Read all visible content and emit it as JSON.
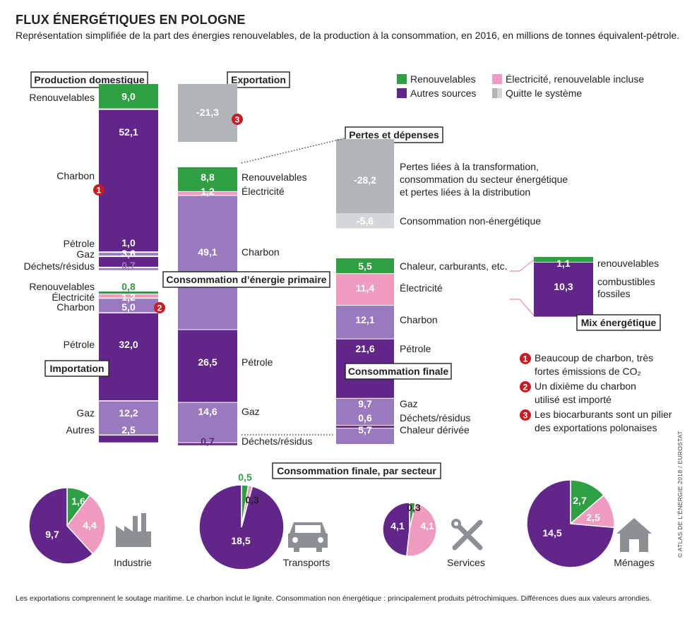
{
  "title": "FLUX ÉNERGÉTIQUES EN POLOGNE",
  "subtitle": "Représentation simplifiée de la part des énergies renouvelables, de la production à la consommation, en 2016, en millions de tonnes équivalent-pétrole.",
  "footnote": "Les exportations comprennent le soutage maritime. Le charbon inclut le lignite. Consommation non énergétique : principalement produits pétrochimiques. Différences dues aux valeurs arrondies.",
  "credit": "© ATLAS DE L'ÉNERGIE 2018 / EUROSTAT",
  "colors": {
    "renouvelables": "#2ea043",
    "autres": "#62268a",
    "autres_light": "#9a7abf",
    "electricite": "#f09bc0",
    "quitte": "#b1b4b8",
    "quitte_light": "#d4d7da",
    "marker": "#cc1a22"
  },
  "legend": [
    {
      "label": "Renouvelables",
      "color": "#2ea043"
    },
    {
      "label": "Électricité, renouvelable incluse",
      "color": "#f09bc0"
    },
    {
      "label": "Autres sources",
      "color": "#62268a"
    },
    {
      "label": "Quitte le système",
      "color": "#b1b4b8"
    }
  ],
  "notes": [
    {
      "num": "1",
      "lines": [
        "Beaucoup de charbon, très",
        "fortes émissions de CO₂"
      ]
    },
    {
      "num": "2",
      "lines": [
        "Un dixième du charbon",
        "utilisé est importé"
      ]
    },
    {
      "num": "3",
      "lines": [
        "Les biocarburants sont un pilier",
        "des exportations polonaises"
      ]
    }
  ],
  "chart_data": [
    {
      "type": "bar",
      "title": "Production domestique",
      "unit": "millions de tonnes équivalent-pétrole",
      "categories": [
        "Renouvelables",
        "Charbon",
        "Pétrole",
        "Gaz",
        "Déchets/résidus"
      ],
      "values": [
        9.0,
        52.1,
        1.0,
        3.6,
        0.7
      ],
      "labels": [
        "9,0",
        "52,1",
        "1,0",
        "3,6",
        "0,7"
      ],
      "marker": "1"
    },
    {
      "type": "bar",
      "title": "Importation",
      "categories": [
        "Renouvelables",
        "Électricité",
        "Charbon",
        "Pétrole",
        "Gaz",
        "Autres"
      ],
      "values": [
        0.8,
        1.2,
        5.0,
        32.0,
        12.2,
        2.5
      ],
      "labels": [
        "0,8",
        "1,2",
        "5,0",
        "32,0",
        "12,2",
        "2,5"
      ],
      "marker": "2"
    },
    {
      "type": "bar",
      "title": "Exportation",
      "categories": [
        "Exportation"
      ],
      "values": [
        -21.3
      ],
      "labels": [
        "-21,3"
      ],
      "marker": "3"
    },
    {
      "type": "bar",
      "title": "Consommation d’énergie primaire",
      "categories": [
        "Renouvelables",
        "Électricité",
        "Charbon",
        "Pétrole",
        "Gaz",
        "Déchets/résidus"
      ],
      "values": [
        8.8,
        1.2,
        49.1,
        26.5,
        14.6,
        0.7
      ],
      "labels": [
        "8,8",
        "1,2",
        "49,1",
        "26,5",
        "14,6",
        "0,7"
      ]
    },
    {
      "type": "bar",
      "title": "Pertes et dépenses",
      "categories": [
        "Pertes liées à la transformation, consommation du secteur énergétique et pertes liées à la distribution",
        "Consommation non-énergétique"
      ],
      "category_lines": [
        [
          "Pertes liées à la transformation,",
          "consommation du secteur énergétique",
          "et pertes liées à la distribution"
        ],
        [
          "Consommation non-énergétique"
        ]
      ],
      "values": [
        -28.2,
        -5.6
      ],
      "labels": [
        "-28,2",
        "-5,6"
      ]
    },
    {
      "type": "bar",
      "title": "Consommation finale",
      "categories": [
        "Chaleur, carburants, etc.",
        "Électricité",
        "Charbon",
        "Pétrole",
        "Gaz",
        "Déchets/résidus",
        "Chaleur dérivée"
      ],
      "values": [
        5.5,
        11.4,
        12.1,
        21.6,
        9.7,
        0.6,
        5.7
      ],
      "labels": [
        "5,5",
        "11,4",
        "12,1",
        "21,6",
        "9,7",
        "0,6",
        "5,7"
      ]
    },
    {
      "type": "bar",
      "title": "Mix énergétique",
      "categories": [
        "renouvelables",
        "combustibles fossiles"
      ],
      "category_lines": [
        [
          "renouvelables"
        ],
        [
          "combustibles",
          "fossiles"
        ]
      ],
      "values": [
        1.1,
        10.3
      ],
      "labels": [
        "1,1",
        "10,3"
      ]
    },
    {
      "type": "pie",
      "title": "Consommation finale, par secteur",
      "sectors": [
        {
          "name": "Industrie",
          "values": [
            1.6,
            4.4,
            9.7
          ],
          "labels": [
            "1,6",
            "4,4",
            "9,7"
          ]
        },
        {
          "name": "Transports",
          "values": [
            0.5,
            0.3,
            18.5
          ],
          "labels": [
            "0,5",
            "0,3",
            "18,5"
          ]
        },
        {
          "name": "Services",
          "values": [
            0.3,
            4.1,
            4.1
          ],
          "labels": [
            "0,3",
            "4,1",
            "4,1"
          ]
        },
        {
          "name": "Ménages",
          "values": [
            2.7,
            2.5,
            14.5
          ],
          "labels": [
            "2,7",
            "2,5",
            "14,5"
          ]
        }
      ],
      "series": [
        "Renouvelables",
        "Électricité, renouvelable incluse",
        "Autres sources"
      ]
    }
  ]
}
